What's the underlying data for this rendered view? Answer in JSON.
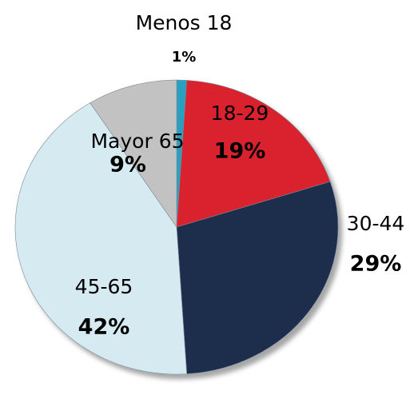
{
  "chart_data": {
    "type": "pie",
    "categories": [
      "Menos 18",
      "18-29",
      "30-44",
      "45-65",
      "Mayor 65"
    ],
    "values": [
      1,
      19,
      29,
      42,
      9
    ],
    "value_labels": [
      "1%",
      "19%",
      "29%",
      "42%",
      "9%"
    ],
    "colors": [
      "#2a9fc0",
      "#d9202e",
      "#1f2e4b",
      "#d6eaf2",
      "#c2c2c2"
    ]
  }
}
